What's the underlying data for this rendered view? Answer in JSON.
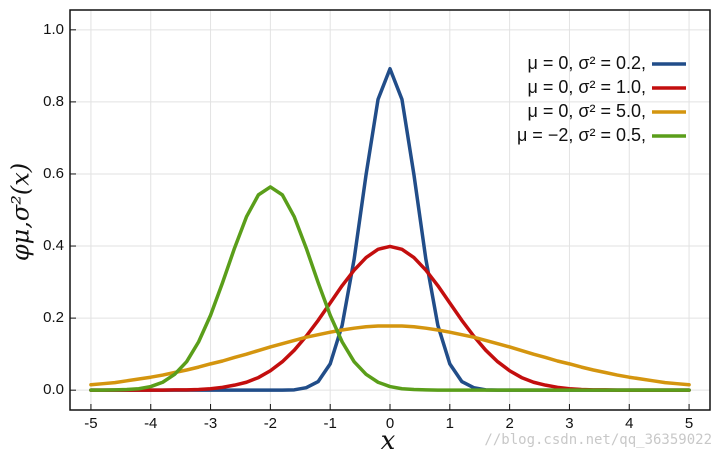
{
  "chart_data": {
    "type": "line",
    "x_label": "x",
    "y_label": "φμ,σ²(x)",
    "watermark": "//blog.csdn.net/qq_36359022",
    "xlim": [
      -5.35,
      5.35
    ],
    "ylim": [
      -0.055,
      1.055
    ],
    "xticks": [
      -5,
      -4,
      -3,
      -2,
      -1,
      0,
      1,
      2,
      3,
      4,
      5
    ],
    "yticks": [
      {
        "value": 0,
        "label": "0.0"
      },
      0.2,
      0.4,
      0.6,
      0.8,
      {
        "value": 1,
        "label": "1.0"
      }
    ],
    "grid": true,
    "legend": "upper right",
    "x": [
      -5,
      -4.8,
      -4.6,
      -4.4,
      -4.2,
      -4,
      -3.8,
      -3.6,
      -3.4,
      -3.2,
      -3,
      -2.8,
      -2.6,
      -2.4,
      -2.2,
      -2,
      -1.8,
      -1.6,
      -1.4,
      -1.2,
      -1,
      -0.8,
      -0.6,
      -0.4,
      -0.2,
      0,
      0.2,
      0.4,
      0.6,
      0.8,
      1,
      1.2,
      1.4,
      1.6,
      1.8,
      2,
      2.2,
      2.4,
      2.6,
      2.8,
      3,
      3.2,
      3.4,
      3.6,
      3.8,
      4,
      4.2,
      4.4,
      4.6,
      4.8,
      5
    ],
    "series": [
      {
        "name": "μ = 0,   σ² = 0.2,",
        "color": "#214d89",
        "values": [
          0,
          0,
          0,
          0,
          0,
          0,
          0,
          0,
          0,
          0,
          0,
          0,
          0,
          0,
          0,
          0,
          0,
          0.001,
          0.007,
          0.024,
          0.073,
          0.18,
          0.363,
          0.598,
          0.807,
          0.892,
          0.807,
          0.598,
          0.363,
          0.18,
          0.073,
          0.024,
          0.007,
          0.001,
          0,
          0,
          0,
          0,
          0,
          0,
          0,
          0,
          0,
          0,
          0,
          0,
          0,
          0,
          0,
          0,
          0
        ]
      },
      {
        "name": "μ = 0,   σ² = 1.0,",
        "color": "#c30e0e",
        "values": [
          0,
          0,
          0,
          0,
          0,
          0,
          0,
          0.001,
          0.001,
          0.002,
          0.004,
          0.008,
          0.014,
          0.022,
          0.035,
          0.054,
          0.079,
          0.111,
          0.15,
          0.194,
          0.242,
          0.29,
          0.333,
          0.368,
          0.391,
          0.399,
          0.391,
          0.368,
          0.333,
          0.29,
          0.242,
          0.194,
          0.15,
          0.111,
          0.079,
          0.054,
          0.035,
          0.022,
          0.014,
          0.008,
          0.004,
          0.002,
          0.001,
          0.001,
          0,
          0,
          0,
          0,
          0,
          0,
          0
        ]
      },
      {
        "name": "μ = 0,   σ² = 5.0,",
        "color": "#d4950f",
        "values": [
          0.015,
          0.018,
          0.021,
          0.026,
          0.031,
          0.036,
          0.042,
          0.049,
          0.056,
          0.064,
          0.073,
          0.081,
          0.091,
          0.1,
          0.11,
          0.12,
          0.129,
          0.138,
          0.147,
          0.154,
          0.161,
          0.167,
          0.172,
          0.176,
          0.178,
          0.178,
          0.178,
          0.176,
          0.172,
          0.167,
          0.161,
          0.154,
          0.147,
          0.138,
          0.129,
          0.12,
          0.11,
          0.1,
          0.091,
          0.081,
          0.073,
          0.064,
          0.056,
          0.049,
          0.042,
          0.036,
          0.031,
          0.026,
          0.021,
          0.018,
          0.015
        ]
      },
      {
        "name": "μ = −2, σ² = 0.5,",
        "color": "#5a9e1a",
        "values": [
          0,
          0,
          0.001,
          0.002,
          0.004,
          0.01,
          0.022,
          0.044,
          0.079,
          0.134,
          0.208,
          0.298,
          0.394,
          0.481,
          0.542,
          0.564,
          0.542,
          0.481,
          0.394,
          0.298,
          0.208,
          0.134,
          0.079,
          0.044,
          0.022,
          0.01,
          0.004,
          0.002,
          0.001,
          0,
          0,
          0,
          0,
          0,
          0,
          0,
          0,
          0,
          0,
          0,
          0,
          0,
          0,
          0,
          0,
          0,
          0,
          0,
          0,
          0,
          0
        ]
      }
    ]
  }
}
